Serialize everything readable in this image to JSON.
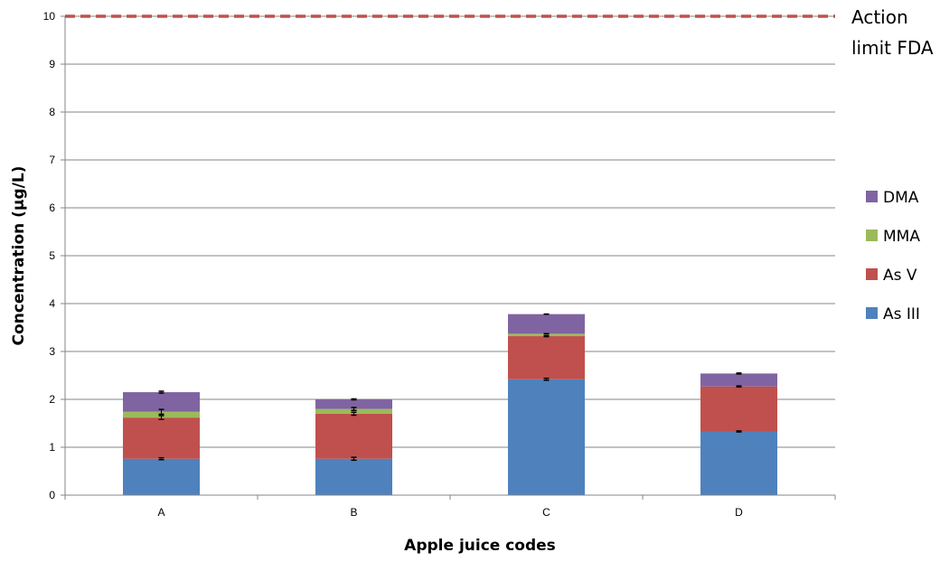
{
  "chart_data": {
    "type": "bar",
    "stacked": true,
    "title": "",
    "xlabel": "Apple juice codes",
    "ylabel": "Concentration (µg/L)",
    "ylim": [
      0,
      10
    ],
    "yticks": [
      0,
      1,
      2,
      3,
      4,
      5,
      6,
      7,
      8,
      9,
      10
    ],
    "grid": true,
    "categories": [
      "A",
      "B",
      "C",
      "D"
    ],
    "series": [
      {
        "name": "As III",
        "color": "#4f81bd",
        "values": [
          0.76,
          0.76,
          2.42,
          1.33
        ],
        "errors": [
          0.02,
          0.03,
          0.02,
          0.01
        ]
      },
      {
        "name": "As V",
        "color": "#c0504d",
        "values": [
          0.86,
          0.94,
          0.9,
          0.94
        ],
        "errors": [
          0.04,
          0.03,
          0.01,
          0.01
        ]
      },
      {
        "name": "MMA",
        "color": "#9bbb59",
        "values": [
          0.12,
          0.1,
          0.05,
          0.0
        ],
        "errors": [
          0.05,
          0.03,
          0.0,
          0.0
        ]
      },
      {
        "name": "DMA",
        "color": "#8064a2",
        "values": [
          0.41,
          0.2,
          0.41,
          0.27
        ],
        "errors": [
          0.02,
          0.01,
          0.0,
          0.01
        ]
      }
    ],
    "legend": {
      "position": "right",
      "order": [
        "DMA",
        "MMA",
        "As V",
        "As III"
      ]
    },
    "reference_line": {
      "value": 10,
      "label_line1": "Action",
      "label_line2": "limit FDA",
      "color": "#c0504d",
      "style": "dashed"
    }
  }
}
